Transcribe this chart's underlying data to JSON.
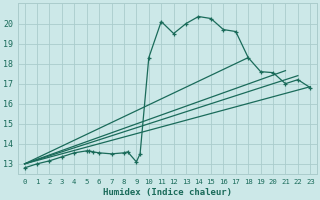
{
  "xlabel": "Humidex (Indice chaleur)",
  "bg_color": "#cce8e8",
  "grid_color": "#aacccc",
  "line_color": "#1a6b5a",
  "xlim": [
    -0.5,
    23.5
  ],
  "ylim": [
    12.5,
    21.0
  ],
  "xticks": [
    0,
    1,
    2,
    3,
    4,
    5,
    6,
    7,
    8,
    9,
    10,
    11,
    12,
    13,
    14,
    15,
    16,
    17,
    18,
    19,
    20,
    21,
    22,
    23
  ],
  "yticks": [
    13,
    14,
    15,
    16,
    17,
    18,
    19,
    20
  ],
  "series1_x": [
    0,
    1,
    2,
    3,
    4,
    5,
    5.2,
    5.5,
    6,
    7,
    8,
    8.3,
    9,
    9.3,
    10,
    11,
    12,
    13,
    14,
    15,
    16,
    17,
    18,
    19,
    20,
    21,
    22,
    23
  ],
  "series1_y": [
    12.8,
    13.0,
    13.15,
    13.35,
    13.55,
    13.65,
    13.65,
    13.6,
    13.55,
    13.5,
    13.55,
    13.6,
    13.1,
    13.5,
    18.3,
    20.1,
    19.5,
    20.0,
    20.35,
    20.25,
    19.7,
    19.6,
    18.3,
    17.6,
    17.55,
    17.0,
    17.2,
    16.8
  ],
  "line1_x": [
    0,
    23
  ],
  "line1_y": [
    13.0,
    16.85
  ],
  "line2_x": [
    0,
    22
  ],
  "line2_y": [
    13.0,
    17.4
  ],
  "line3_x": [
    0,
    21
  ],
  "line3_y": [
    13.0,
    17.65
  ],
  "line4_x": [
    0,
    18
  ],
  "line4_y": [
    13.0,
    18.3
  ]
}
